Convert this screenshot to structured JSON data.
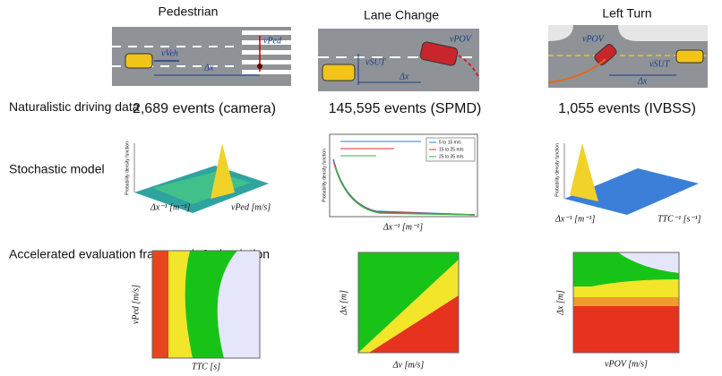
{
  "rows": [
    "Naturalistic driving data",
    "Stochastic model",
    "Accelerated evaluation framework & simulation"
  ],
  "columns": [
    {
      "title": "Pedestrian",
      "scene_labels": [
        "vVeh",
        "vPed",
        "Δx"
      ],
      "events": "2,689 events (camera)",
      "model_ylabel": "Probability density function",
      "model_axes": [
        "Δx⁻¹ [m⁻¹]",
        "vPed [m/s]"
      ],
      "sim_axes": [
        "TTC [s]",
        "vPed [m/s]"
      ]
    },
    {
      "title": "Lane Change",
      "scene_labels": [
        "vSUT",
        "vPOV",
        "Δx"
      ],
      "events": "145,595 events (SPMD)",
      "model_ylabel": "Probability density function",
      "model_axes": [
        "Δx⁻¹ [m⁻¹]"
      ],
      "legend": [
        "5 to 15 m/s",
        "15 to 25 m/s",
        "25 to 35 m/s"
      ],
      "sim_axes": [
        "Δv [m/s]",
        "Δx [m]"
      ]
    },
    {
      "title": "Left Turn",
      "scene_labels": [
        "vSUT",
        "vPOV",
        "Δx"
      ],
      "events": "1,055 events (IVBSS)",
      "model_ylabel": "Probability density function",
      "model_axes": [
        "Δx⁻¹ [m⁻¹]",
        "TTC⁻¹ [s⁻¹]"
      ],
      "sim_axes": [
        "vPOV [m/s]",
        "Δx [m]"
      ]
    }
  ]
}
